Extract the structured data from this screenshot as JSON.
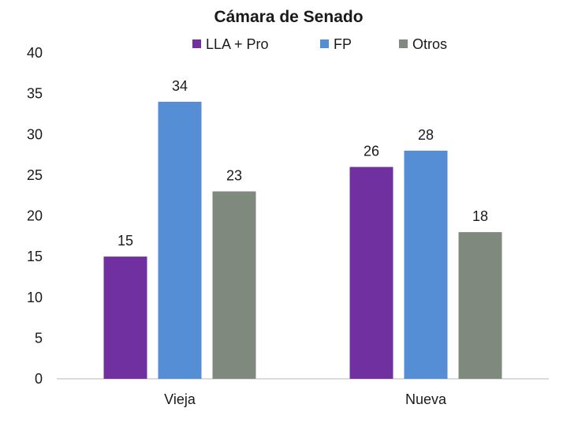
{
  "chart_data": {
    "type": "bar",
    "title": "Cámara de Senado",
    "categories": [
      "Vieja",
      "Nueva"
    ],
    "series": [
      {
        "name": "LLA + Pro",
        "values": [
          15,
          26
        ],
        "color": "#7030A0"
      },
      {
        "name": "FP",
        "values": [
          34,
          28
        ],
        "color": "#558ED5"
      },
      {
        "name": "Otros",
        "values": [
          23,
          18
        ],
        "color": "#7F897D"
      }
    ],
    "xlabel": "",
    "ylabel": "",
    "ylim": [
      0,
      40
    ],
    "yticks": [
      0,
      5,
      10,
      15,
      20,
      25,
      30,
      35,
      40
    ],
    "legend_position": "top",
    "grid": false,
    "data_labels": true
  }
}
